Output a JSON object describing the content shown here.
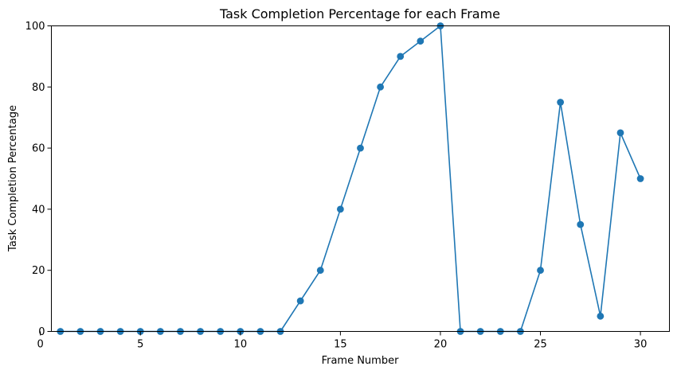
{
  "chart_data": {
    "type": "line",
    "title": "Task Completion Percentage for each Frame",
    "xlabel": "Frame Number",
    "ylabel": "Task Completion Percentage",
    "xlim": [
      0.55,
      31.45
    ],
    "ylim": [
      0,
      100
    ],
    "xticks": [
      0,
      5,
      10,
      15,
      20,
      25,
      30
    ],
    "yticks": [
      0,
      20,
      40,
      60,
      80,
      100
    ],
    "grid": false,
    "series": [
      {
        "color": "#1f77b4",
        "marker": "circle",
        "x": [
          1,
          2,
          3,
          4,
          5,
          6,
          7,
          8,
          9,
          10,
          11,
          12,
          13,
          14,
          15,
          16,
          17,
          18,
          19,
          20,
          21,
          22,
          23,
          24,
          25,
          26,
          27,
          28,
          29,
          30
        ],
        "values": [
          0,
          0,
          0,
          0,
          0,
          0,
          0,
          0,
          0,
          0,
          0,
          0,
          10,
          20,
          40,
          60,
          80,
          90,
          95,
          100,
          0,
          0,
          0,
          0,
          20,
          75,
          35,
          5,
          65,
          50
        ]
      }
    ]
  }
}
